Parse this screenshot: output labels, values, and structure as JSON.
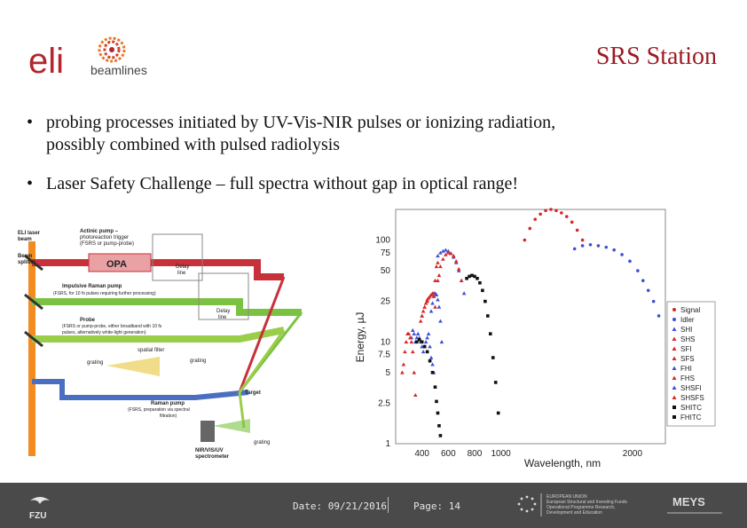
{
  "header": {
    "title": "SRS Station",
    "logo_main": "eli",
    "logo_sub": "beamlines"
  },
  "bullets": [
    {
      "line1": "probing processes initiated by UV-Vis-NIR pulses or ionizing radiation,",
      "line2": "possibly combined with pulsed radiolysis"
    },
    {
      "line1": "Laser Safety Challenge – full spectra without gap in optical range!"
    }
  ],
  "diagram": {
    "labels": {
      "eli_laser": "ELI laser",
      "beam": "beam",
      "beam_splitter": "Beam",
      "splitter": "splitter",
      "opa": "OPA",
      "actinic_1": "Actinic pump –",
      "actinic_2": "photoreaction trigger",
      "actinic_3": "(FSRS or pump-probe)",
      "delay": "Delay",
      "line": "line",
      "impulsive_1": "Impulsive Raman pump",
      "impulsive_2": "(FSRS, for 10 fs pulses requiring further processing)",
      "probe_1": "Probe",
      "probe_2": "(FSRS or pump-probe, either broadband with 10 fs",
      "probe_3": "pulses, alternatively white-light generation)",
      "spatial_filter": "spatial filter",
      "grating": "grating",
      "target": "Target",
      "raman_1": "Raman pump",
      "raman_2": "(FSRS, preparation via spectral",
      "raman_3": "filtration)",
      "spectrometer_1": "NIR/VIS/UV",
      "spectrometer_2": "spectrometer"
    }
  },
  "chart_data": {
    "type": "scatter",
    "title": "",
    "xlabel": "Wavelength, nm",
    "ylabel": "Energy, µJ",
    "xlim": [
      200,
      2250
    ],
    "ylim": [
      1,
      200
    ],
    "yscale": "log",
    "xticks": [
      400,
      600,
      800,
      1000,
      2000
    ],
    "xtick_labels": [
      "400",
      "600",
      "800",
      "1000",
      "2000"
    ],
    "yticks": [
      1,
      2.5,
      5,
      7.5,
      10,
      25,
      50,
      75,
      100
    ],
    "ytick_labels": [
      "1",
      "2.5",
      "5",
      "7.5",
      "10",
      "25",
      "50",
      "75",
      "100"
    ],
    "grid": true,
    "legend_position": "right",
    "reference_lines": {
      "x": 1000,
      "y": 10
    },
    "series": [
      {
        "name": "Signal",
        "color": "#d62728",
        "marker": "circle",
        "x": [
          1180,
          1220,
          1260,
          1300,
          1340,
          1380,
          1420,
          1460,
          1500,
          1540,
          1580,
          1620
        ],
        "y": [
          100,
          130,
          160,
          180,
          195,
          200,
          195,
          185,
          170,
          150,
          125,
          100
        ]
      },
      {
        "name": "Idler",
        "color": "#3f4fd4",
        "marker": "circle",
        "x": [
          1560,
          1620,
          1680,
          1740,
          1800,
          1860,
          1920,
          1980,
          2040,
          2080,
          2120,
          2160,
          2200
        ],
        "y": [
          82,
          88,
          90,
          88,
          85,
          80,
          72,
          62,
          50,
          40,
          32,
          25,
          18
        ]
      },
      {
        "name": "SHI",
        "color": "#3f4fd4",
        "marker": "triangle",
        "x": [
          520,
          540,
          560,
          580,
          600,
          620,
          640,
          660,
          680,
          700,
          720
        ],
        "y": [
          70,
          75,
          78,
          80,
          78,
          74,
          68,
          60,
          50,
          40,
          30
        ]
      },
      {
        "name": "SHS",
        "color": "#d62728",
        "marker": "triangle",
        "x": [
          520,
          540,
          560,
          580,
          600,
          620,
          640,
          660,
          680,
          700
        ],
        "y": [
          40,
          55,
          65,
          72,
          75,
          74,
          70,
          62,
          52,
          40
        ]
      },
      {
        "name": "SFI",
        "color": "#d62728",
        "marker": "triangle",
        "x": [
          490,
          500,
          510,
          520,
          530
        ],
        "y": [
          30,
          40,
          55,
          60,
          45
        ]
      },
      {
        "name": "SFS",
        "color": "#d62728",
        "marker": "triangle",
        "x": [
          400,
          420,
          440
        ],
        "y": [
          18,
          22,
          25
        ]
      },
      {
        "name": "FHI",
        "color": "#3f4fd4",
        "marker": "triangle",
        "x": [
          470,
          480,
          490,
          500,
          510,
          520,
          530,
          540,
          550
        ],
        "y": [
          20,
          24,
          28,
          30,
          29,
          26,
          22,
          16,
          10
        ]
      },
      {
        "name": "FHS",
        "color": "#d62728",
        "marker": "triangle",
        "x": [
          390,
          400,
          410,
          420,
          430,
          440,
          450,
          460,
          470,
          480,
          490,
          500
        ],
        "y": [
          16,
          18,
          20,
          22,
          24,
          26,
          27,
          28,
          29,
          30,
          28,
          22
        ]
      },
      {
        "name": "SHSFI",
        "color": "#3f4fd4",
        "marker": "triangle",
        "x": [
          320,
          330,
          340,
          350,
          360,
          370,
          380,
          390,
          400,
          410,
          420,
          430,
          440,
          450,
          460,
          470,
          480,
          490
        ],
        "y": [
          11,
          13,
          12,
          10,
          11,
          12,
          11,
          10,
          9,
          8,
          9,
          10,
          11,
          12,
          9,
          7,
          6,
          5
        ]
      },
      {
        "name": "SHSFS",
        "color": "#d62728",
        "marker": "triangle",
        "x": [
          250,
          260,
          270,
          280,
          290,
          300,
          310,
          320,
          330,
          340,
          350
        ],
        "y": [
          5,
          6,
          8,
          10,
          12,
          12,
          11,
          10,
          8,
          5,
          3
        ]
      },
      {
        "name": "SHITC",
        "color": "#111111",
        "marker": "square",
        "x": [
          740,
          760,
          780,
          800,
          820,
          840,
          860,
          880,
          900,
          920,
          940,
          960,
          980
        ],
        "y": [
          42,
          44,
          45,
          44,
          42,
          38,
          32,
          25,
          18,
          12,
          7,
          4,
          2
        ]
      },
      {
        "name": "FHITC",
        "color": "#111111",
        "marker": "square",
        "x": [
          360,
          380,
          400,
          420,
          440,
          460,
          480,
          500,
          510,
          520,
          530,
          540
        ],
        "y": [
          10,
          10.5,
          10,
          9,
          8,
          6.5,
          5,
          3.6,
          2.6,
          2,
          1.5,
          1.2
        ]
      }
    ]
  },
  "footer": {
    "date": "Date: 09/21/2016",
    "page": "Page: 14",
    "left_logo": "FZU",
    "eu_line1": "EUROPEAN UNION",
    "eu_line2": "European Structural and Investing Funds",
    "eu_line3": "Operational Programme Research,",
    "eu_line4": "Development and Education",
    "right_logo": "MEYS"
  }
}
